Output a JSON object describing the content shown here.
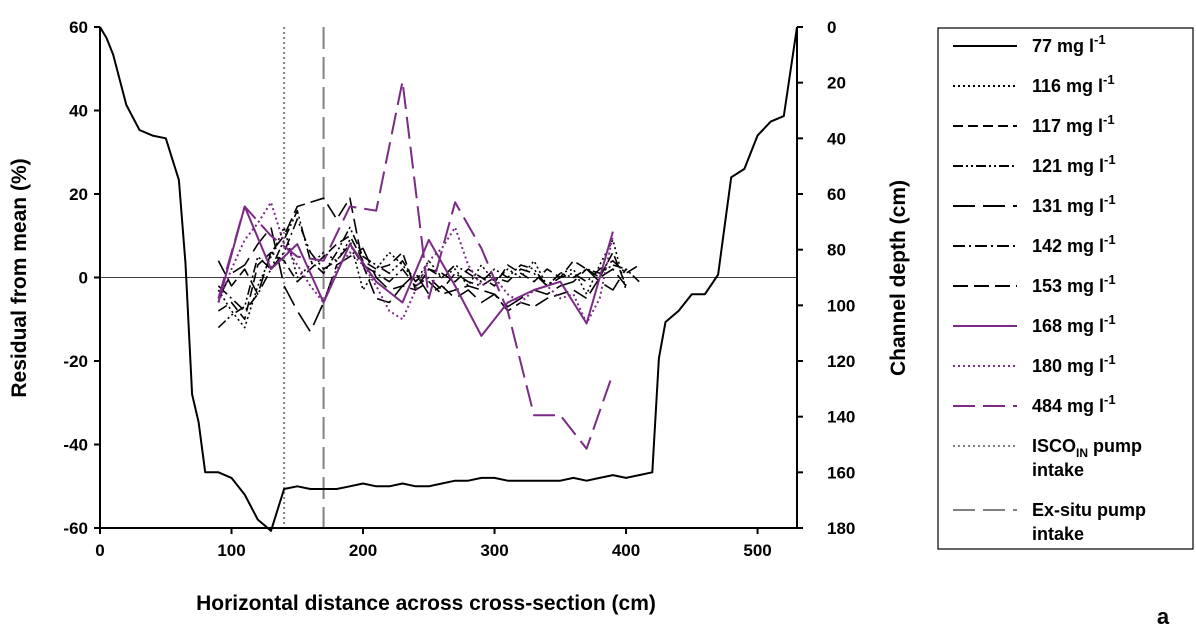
{
  "panel_label": "a",
  "chart_data": {
    "type": "line",
    "xlabel": "Horizontal distance across cross-section (cm)",
    "ylabel": "Residual from mean (%)",
    "y2label": "Channel depth (cm)",
    "xlim": [
      0,
      530
    ],
    "ylim": [
      -60,
      60
    ],
    "y2lim": [
      0,
      180
    ],
    "y2_inverted": true,
    "xticks": [
      0,
      100,
      200,
      300,
      400,
      500
    ],
    "yticks": [
      60,
      40,
      20,
      0,
      -20,
      -40,
      -60
    ],
    "y2ticks": [
      0,
      20,
      40,
      60,
      80,
      100,
      120,
      140,
      160,
      180
    ],
    "grid": false,
    "zero_line": true,
    "legend_position": "right-outside",
    "cross_section": {
      "name": "77 mg l-1",
      "axis": "y2",
      "x": [
        0,
        5,
        10,
        20,
        30,
        40,
        50,
        60,
        65,
        70,
        75,
        80,
        90,
        100,
        110,
        120,
        130,
        140,
        150,
        160,
        170,
        180,
        190,
        200,
        210,
        220,
        230,
        240,
        250,
        260,
        270,
        280,
        290,
        300,
        310,
        320,
        330,
        340,
        350,
        360,
        370,
        380,
        390,
        400,
        410,
        420,
        425,
        430,
        440,
        450,
        460,
        470,
        480,
        490,
        500,
        510,
        520,
        530
      ],
      "y": [
        0,
        4,
        10,
        28,
        37,
        39,
        40,
        55,
        85,
        132,
        142,
        160,
        160,
        162,
        168,
        177,
        181,
        166,
        165,
        166,
        166,
        166,
        165,
        164,
        165,
        165,
        164,
        165,
        165,
        164,
        163,
        163,
        162,
        162,
        163,
        163,
        163,
        163,
        163,
        162,
        163,
        162,
        161,
        162,
        161,
        160,
        119,
        106,
        102,
        96,
        96,
        89,
        54,
        51,
        39,
        34,
        32,
        0
      ]
    },
    "series": [
      {
        "name": "116 mg l-1",
        "color": "#000000",
        "dash": "dotted",
        "x": [
          90,
          100,
          110,
          120,
          130,
          140,
          150,
          160,
          170,
          180,
          190,
          200,
          210,
          220,
          230,
          240,
          250,
          260,
          270,
          280,
          290,
          300,
          310,
          320,
          330,
          340,
          350,
          360,
          370,
          380,
          390,
          400
        ],
        "y": [
          -3,
          -8,
          -12,
          -2,
          5,
          12,
          0,
          3,
          6,
          4,
          9,
          -3,
          2,
          6,
          3,
          -1,
          4,
          0,
          2,
          -2,
          3,
          -1,
          2,
          0,
          4,
          -2,
          1,
          2,
          -4,
          3,
          9,
          -3
        ]
      },
      {
        "name": "117 mg l-1",
        "color": "#000000",
        "dash": "dash-short",
        "x": [
          90,
          100,
          110,
          120,
          130,
          140,
          150,
          160,
          170,
          180,
          190,
          200,
          210,
          220,
          230,
          240,
          250,
          260,
          270,
          280,
          290,
          300,
          310,
          320,
          330,
          340,
          350,
          360,
          370,
          380,
          390,
          400
        ],
        "y": [
          -8,
          -6,
          -10,
          3,
          6,
          4,
          -1,
          2,
          5,
          8,
          10,
          4,
          2,
          3,
          6,
          -3,
          2,
          1,
          -1,
          2,
          0,
          -2,
          3,
          1,
          -1,
          2,
          0,
          4,
          2,
          0,
          6,
          -2
        ]
      },
      {
        "name": "121 mg l-1",
        "color": "#000000",
        "dash": "dash-dot-dot",
        "x": [
          90,
          100,
          110,
          120,
          130,
          140,
          150,
          160,
          170,
          180,
          190,
          200,
          210,
          220,
          230,
          240,
          250,
          260,
          270,
          280,
          290,
          300,
          310,
          320,
          330,
          340,
          350,
          360,
          370,
          380,
          390,
          400,
          410
        ],
        "y": [
          -12,
          -9,
          -7,
          5,
          2,
          9,
          16,
          4,
          1,
          6,
          12,
          5,
          3,
          1,
          4,
          -1,
          2,
          0,
          3,
          1,
          -1,
          2,
          0,
          3,
          2,
          -2,
          1,
          0,
          2,
          1,
          3,
          2,
          -1
        ]
      },
      {
        "name": "131 mg l-1",
        "color": "#000000",
        "dash": "dash-long",
        "x": [
          90,
          100,
          110,
          120,
          130,
          140,
          150,
          160,
          170,
          180,
          190,
          200,
          210,
          220,
          230,
          240,
          250,
          260,
          270,
          280,
          290,
          300,
          310,
          320,
          330,
          340,
          350,
          360,
          370,
          380,
          390,
          400
        ],
        "y": [
          -5,
          1,
          3,
          8,
          12,
          -2,
          -8,
          -13,
          -6,
          3,
          5,
          7,
          0,
          -3,
          -2,
          1,
          -4,
          -2,
          -5,
          -3,
          -6,
          -4,
          -7,
          -5,
          -3,
          -4,
          -2,
          -1,
          2,
          -1,
          -3,
          2
        ]
      },
      {
        "name": "142 mg l-1",
        "color": "#000000",
        "dash": "dash-dot",
        "x": [
          90,
          100,
          110,
          120,
          130,
          140,
          150,
          160,
          170,
          180,
          190,
          200,
          210,
          220,
          230,
          240,
          250,
          260,
          270,
          280,
          290,
          300,
          310,
          320,
          330,
          340,
          350,
          360,
          370,
          380,
          390,
          400,
          410
        ],
        "y": [
          -2,
          -5,
          -8,
          -4,
          2,
          6,
          14,
          6,
          2,
          4,
          8,
          3,
          1,
          -1,
          2,
          -2,
          0,
          -3,
          1,
          -1,
          -2,
          0,
          -1,
          2,
          1,
          -2,
          0,
          1,
          -1,
          2,
          4,
          1,
          3
        ]
      },
      {
        "name": "153 mg l-1",
        "color": "#000000",
        "dash": "dash-med",
        "x": [
          90,
          100,
          110,
          120,
          130,
          140,
          150,
          160,
          170,
          180,
          190,
          200,
          210,
          220,
          230,
          240,
          250,
          260,
          270,
          280,
          290,
          300,
          310,
          320,
          330,
          340,
          350,
          360,
          370,
          380,
          390,
          400
        ],
        "y": [
          4,
          -2,
          2,
          -4,
          6,
          10,
          17,
          18,
          19,
          14,
          19,
          3,
          -5,
          -6,
          -2,
          -3,
          -1,
          -4,
          -3,
          -2,
          -3,
          -4,
          -8,
          -6,
          -7,
          -5,
          -4,
          -3,
          -5,
          0,
          2,
          -2
        ]
      },
      {
        "name": "168 mg l-1",
        "color": "#7b2a86",
        "dash": "solid",
        "x": [
          90,
          110,
          130,
          150,
          170,
          190,
          210,
          230,
          250,
          270,
          290,
          310,
          330,
          350,
          370,
          390
        ],
        "y": [
          -6,
          17,
          2,
          8,
          -6,
          8,
          -1,
          -6,
          9,
          -2,
          -14,
          -6,
          -3,
          -1,
          -11,
          11
        ]
      },
      {
        "name": "180 mg l-1",
        "color": "#7b2a86",
        "dash": "dotted",
        "x": [
          90,
          100,
          110,
          120,
          130,
          140,
          150,
          160,
          170,
          180,
          190,
          200,
          210,
          220,
          230,
          240,
          250,
          260,
          270,
          280,
          290,
          300,
          310,
          320,
          330,
          340,
          350,
          360,
          370,
          380,
          390
        ],
        "y": [
          -6,
          2,
          9,
          13,
          18,
          8,
          3,
          -2,
          -6,
          2,
          6,
          3,
          -2,
          -8,
          -10,
          -3,
          4,
          7,
          12,
          3,
          -2,
          0,
          -4,
          -6,
          -3,
          -2,
          -5,
          -4,
          -11,
          -5,
          10
        ]
      },
      {
        "name": "484 mg l-1",
        "color": "#7b2a86",
        "dash": "dash-long",
        "x": [
          90,
          110,
          130,
          150,
          170,
          190,
          210,
          230,
          250,
          270,
          290,
          310,
          330,
          350,
          370,
          390
        ],
        "y": [
          -5,
          17,
          10,
          5,
          4,
          17,
          16,
          47,
          -5,
          18,
          7,
          -8,
          -33,
          -33,
          -41,
          -23
        ]
      }
    ],
    "reference_lines": [
      {
        "name": "ISCO_IN pump intake",
        "x": 140,
        "color": "#808080",
        "dash": "dotted"
      },
      {
        "name": "Ex-situ pump intake",
        "x": 170,
        "color": "#808080",
        "dash": "dash-long"
      }
    ],
    "legend": [
      {
        "label": "77 mg l",
        "sup": "-1",
        "color": "#000000",
        "dash": "solid"
      },
      {
        "label": "116 mg l",
        "sup": "-1",
        "color": "#000000",
        "dash": "dotted"
      },
      {
        "label": "117 mg l",
        "sup": "-1",
        "color": "#000000",
        "dash": "dash-short"
      },
      {
        "label": "121 mg l",
        "sup": "-1",
        "color": "#000000",
        "dash": "dash-dot-dot"
      },
      {
        "label": "131 mg l",
        "sup": "-1",
        "color": "#000000",
        "dash": "dash-long"
      },
      {
        "label": "142 mg l",
        "sup": "-1",
        "color": "#000000",
        "dash": "dash-dot"
      },
      {
        "label": "153 mg l",
        "sup": "-1",
        "color": "#000000",
        "dash": "dash-med"
      },
      {
        "label": "168 mg l",
        "sup": "-1",
        "color": "#7b2a86",
        "dash": "solid"
      },
      {
        "label": "180 mg l",
        "sup": "-1",
        "color": "#7b2a86",
        "dash": "dotted"
      },
      {
        "label": "484 mg l",
        "sup": "-1",
        "color": "#7b2a86",
        "dash": "dash-long"
      },
      {
        "label": "ISCO",
        "sub": "IN",
        "label2": " pump",
        "line2": "intake",
        "color": "#808080",
        "dash": "dotted"
      },
      {
        "label": "Ex-situ pump",
        "line2": "intake",
        "color": "#808080",
        "dash": "dash-long"
      }
    ]
  }
}
